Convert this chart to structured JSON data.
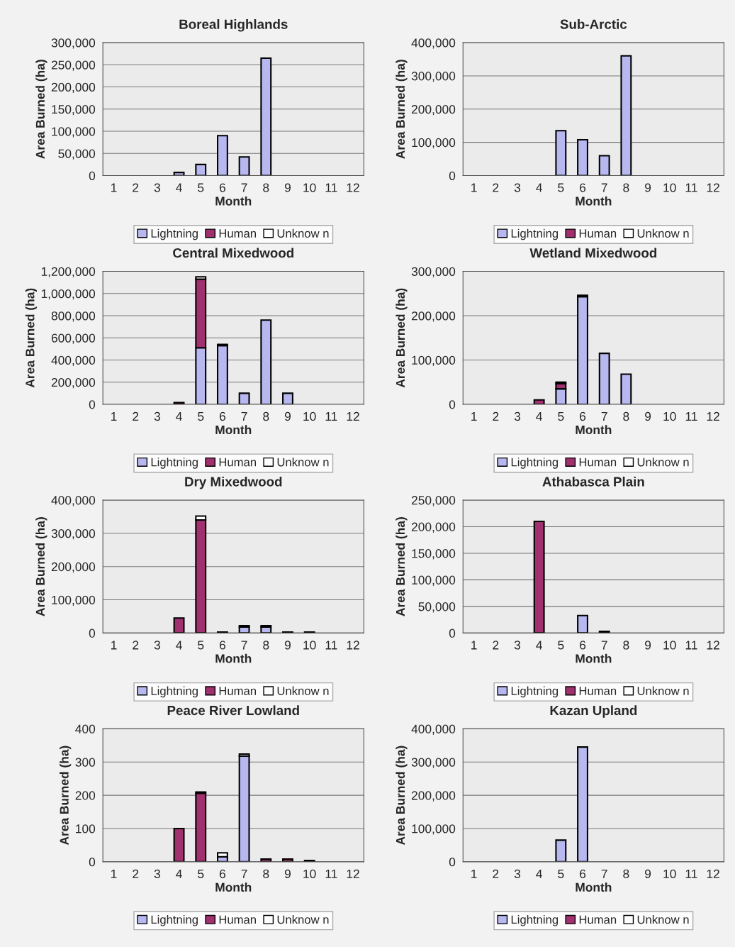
{
  "chart_data": [
    {
      "type": "bar",
      "stacked": true,
      "title": "Boreal Highlands",
      "xlabel": "Month",
      "ylabel": "Area Burned (ha)",
      "legend": "bottom",
      "grid": "y",
      "categories": [
        "1",
        "2",
        "3",
        "4",
        "5",
        "6",
        "7",
        "8",
        "9",
        "10",
        "11",
        "12"
      ],
      "ylim": [
        0,
        300000
      ],
      "yticks": [
        0,
        {
          "value": 50000,
          "label": "50,000"
        },
        {
          "value": 100000,
          "label": "100,000"
        },
        {
          "value": 150000,
          "label": "150,000"
        },
        {
          "value": 200000,
          "label": "200,000"
        },
        {
          "value": 250000,
          "label": "250,000"
        },
        {
          "value": 300000,
          "label": "300,000"
        }
      ],
      "series": [
        {
          "name": "Lightning",
          "color": "#b8b8f0",
          "values": [
            null,
            null,
            null,
            7000,
            25000,
            90000,
            42000,
            265000,
            null,
            null,
            null,
            null
          ]
        },
        {
          "name": "Human",
          "color": "#a0306e",
          "values": [
            null,
            null,
            null,
            null,
            null,
            null,
            null,
            null,
            null,
            null,
            null,
            null
          ]
        },
        {
          "name": "Unknow n",
          "color": "#ffffff",
          "values": [
            null,
            null,
            null,
            null,
            null,
            null,
            null,
            null,
            null,
            null,
            null,
            null
          ]
        }
      ]
    },
    {
      "type": "bar",
      "stacked": true,
      "title": "Sub-Arctic",
      "xlabel": "Month",
      "ylabel": "Area Burned (ha)",
      "legend": "bottom",
      "grid": "y",
      "categories": [
        "1",
        "2",
        "3",
        "4",
        "5",
        "6",
        "7",
        "8",
        "9",
        "10",
        "11",
        "12"
      ],
      "ylim": [
        0,
        400000
      ],
      "yticks": [
        0,
        {
          "value": 100000,
          "label": "100,000"
        },
        {
          "value": 200000,
          "label": "200,000"
        },
        {
          "value": 300000,
          "label": "300,000"
        },
        {
          "value": 400000,
          "label": "400,000"
        }
      ],
      "series": [
        {
          "name": "Lightning",
          "color": "#b8b8f0",
          "values": [
            null,
            null,
            null,
            null,
            135000,
            108000,
            60000,
            360000,
            null,
            null,
            null,
            null
          ]
        },
        {
          "name": "Human",
          "color": "#a0306e",
          "values": [
            null,
            null,
            null,
            null,
            null,
            null,
            null,
            null,
            null,
            null,
            null,
            null
          ]
        },
        {
          "name": "Unknow n",
          "color": "#ffffff",
          "values": [
            null,
            null,
            null,
            null,
            null,
            null,
            null,
            null,
            null,
            null,
            null,
            null
          ]
        }
      ]
    },
    {
      "type": "bar",
      "stacked": true,
      "title": "Central Mixedwood",
      "xlabel": "Month",
      "ylabel": "Area Burned (ha)",
      "legend": "bottom",
      "grid": "y",
      "categories": [
        "1",
        "2",
        "3",
        "4",
        "5",
        "6",
        "7",
        "8",
        "9",
        "10",
        "11",
        "12"
      ],
      "ylim": [
        0,
        1200000
      ],
      "yticks": [
        0,
        {
          "value": 200000,
          "label": "200,000"
        },
        {
          "value": 400000,
          "label": "400,000"
        },
        {
          "value": 600000,
          "label": "600,000"
        },
        {
          "value": 800000,
          "label": "800,000"
        },
        {
          "value": 1000000,
          "label": "1,000,000"
        },
        {
          "value": 1200000,
          "label": "1,200,000"
        }
      ],
      "series": [
        {
          "name": "Lightning",
          "color": "#b8b8f0",
          "values": [
            null,
            null,
            null,
            null,
            510000,
            530000,
            100000,
            760000,
            100000,
            null,
            null,
            null
          ]
        },
        {
          "name": "Human",
          "color": "#a0306e",
          "values": [
            null,
            null,
            null,
            15000,
            620000,
            null,
            null,
            null,
            null,
            null,
            null,
            null
          ]
        },
        {
          "name": "Unknow n",
          "color": "#ffffff",
          "values": [
            null,
            null,
            null,
            null,
            20000,
            10000,
            null,
            null,
            null,
            null,
            null,
            null
          ]
        }
      ]
    },
    {
      "type": "bar",
      "stacked": true,
      "title": "Wetland Mixedwood",
      "xlabel": "Month",
      "ylabel": "Area Burned (ha)",
      "legend": "bottom",
      "grid": "y",
      "categories": [
        "1",
        "2",
        "3",
        "4",
        "5",
        "6",
        "7",
        "8",
        "9",
        "10",
        "11",
        "12"
      ],
      "ylim": [
        0,
        300000
      ],
      "yticks": [
        0,
        {
          "value": 100000,
          "label": "100,000"
        },
        {
          "value": 200000,
          "label": "200,000"
        },
        {
          "value": 300000,
          "label": "300,000"
        }
      ],
      "series": [
        {
          "name": "Lightning",
          "color": "#b8b8f0",
          "values": [
            null,
            null,
            null,
            null,
            35000,
            243000,
            115000,
            68000,
            null,
            null,
            null,
            null
          ]
        },
        {
          "name": "Human",
          "color": "#a0306e",
          "values": [
            null,
            null,
            null,
            10000,
            12000,
            null,
            null,
            null,
            null,
            null,
            null,
            null
          ]
        },
        {
          "name": "Unknow n",
          "color": "#ffffff",
          "values": [
            null,
            null,
            null,
            null,
            3000,
            3000,
            null,
            null,
            null,
            null,
            null,
            null
          ]
        }
      ]
    },
    {
      "type": "bar",
      "stacked": true,
      "title": "Dry Mixedwood",
      "xlabel": "Month",
      "ylabel": "Area Burned (ha)",
      "legend": "bottom",
      "grid": "y",
      "categories": [
        "1",
        "2",
        "3",
        "4",
        "5",
        "6",
        "7",
        "8",
        "9",
        "10",
        "11",
        "12"
      ],
      "ylim": [
        0,
        400000
      ],
      "yticks": [
        0,
        {
          "value": 100000,
          "label": "100,000"
        },
        {
          "value": 200000,
          "label": "200,000"
        },
        {
          "value": 300000,
          "label": "300,000"
        },
        {
          "value": 400000,
          "label": "400,000"
        }
      ],
      "series": [
        {
          "name": "Lightning",
          "color": "#b8b8f0",
          "values": [
            null,
            null,
            null,
            null,
            null,
            3000,
            18000,
            18000,
            3000,
            3000,
            null,
            null
          ]
        },
        {
          "name": "Human",
          "color": "#a0306e",
          "values": [
            null,
            null,
            null,
            45000,
            340000,
            null,
            null,
            null,
            null,
            null,
            null,
            null
          ]
        },
        {
          "name": "Unknow n",
          "color": "#ffffff",
          "values": [
            null,
            null,
            null,
            null,
            12000,
            null,
            4000,
            4000,
            null,
            null,
            null,
            null
          ]
        }
      ]
    },
    {
      "type": "bar",
      "stacked": true,
      "title": "Athabasca Plain",
      "xlabel": "Month",
      "ylabel": "Area Burned (ha)",
      "legend": "bottom",
      "grid": "y",
      "categories": [
        "1",
        "2",
        "3",
        "4",
        "5",
        "6",
        "7",
        "8",
        "9",
        "10",
        "11",
        "12"
      ],
      "ylim": [
        0,
        250000
      ],
      "yticks": [
        0,
        {
          "value": 50000,
          "label": "50,000"
        },
        {
          "value": 100000,
          "label": "100,000"
        },
        {
          "value": 150000,
          "label": "150,000"
        },
        {
          "value": 200000,
          "label": "200,000"
        },
        {
          "value": 250000,
          "label": "250,000"
        }
      ],
      "series": [
        {
          "name": "Lightning",
          "color": "#b8b8f0",
          "values": [
            null,
            null,
            null,
            null,
            null,
            33000,
            null,
            null,
            null,
            null,
            null,
            null
          ]
        },
        {
          "name": "Human",
          "color": "#a0306e",
          "values": [
            null,
            null,
            null,
            210000,
            null,
            null,
            3000,
            null,
            null,
            null,
            null,
            null
          ]
        },
        {
          "name": "Unknow n",
          "color": "#ffffff",
          "values": [
            null,
            null,
            null,
            null,
            null,
            null,
            null,
            null,
            null,
            null,
            null,
            null
          ]
        }
      ]
    },
    {
      "type": "bar",
      "stacked": true,
      "title": "Peace River Lowland",
      "xlabel": "Month",
      "ylabel": "Area Burned (ha)",
      "legend": "bottom",
      "grid": "y",
      "categories": [
        "1",
        "2",
        "3",
        "4",
        "5",
        "6",
        "7",
        "8",
        "9",
        "10",
        "11",
        "12"
      ],
      "ylim": [
        0,
        400
      ],
      "yticks": [
        0,
        100,
        200,
        300,
        400
      ],
      "series": [
        {
          "name": "Lightning",
          "color": "#b8b8f0",
          "values": [
            null,
            null,
            null,
            null,
            null,
            15,
            318,
            null,
            null,
            null,
            null,
            null
          ]
        },
        {
          "name": "Human",
          "color": "#a0306e",
          "values": [
            null,
            null,
            null,
            100,
            206,
            null,
            null,
            8,
            8,
            4,
            null,
            null
          ]
        },
        {
          "name": "Unknow n",
          "color": "#ffffff",
          "values": [
            null,
            null,
            null,
            null,
            4,
            12,
            6,
            null,
            null,
            null,
            null,
            null
          ]
        }
      ]
    },
    {
      "type": "bar",
      "stacked": true,
      "title": "Kazan Upland",
      "xlabel": "Month",
      "ylabel": "Area Burned (ha)",
      "legend": "bottom",
      "grid": "y",
      "categories": [
        "1",
        "2",
        "3",
        "4",
        "5",
        "6",
        "7",
        "8",
        "9",
        "10",
        "11",
        "12"
      ],
      "ylim": [
        0,
        400000
      ],
      "yticks": [
        0,
        {
          "value": 100000,
          "label": "100,000"
        },
        {
          "value": 200000,
          "label": "200,000"
        },
        {
          "value": 300000,
          "label": "300,000"
        },
        {
          "value": 400000,
          "label": "400,000"
        }
      ],
      "series": [
        {
          "name": "Lightning",
          "color": "#b8b8f0",
          "values": [
            null,
            null,
            null,
            null,
            65000,
            345000,
            null,
            null,
            null,
            null,
            null,
            null
          ]
        },
        {
          "name": "Human",
          "color": "#a0306e",
          "values": [
            null,
            null,
            null,
            null,
            null,
            null,
            null,
            null,
            null,
            null,
            null,
            null
          ]
        },
        {
          "name": "Unknow n",
          "color": "#ffffff",
          "values": [
            null,
            null,
            null,
            null,
            null,
            null,
            null,
            null,
            null,
            null,
            null,
            null
          ]
        }
      ]
    }
  ]
}
